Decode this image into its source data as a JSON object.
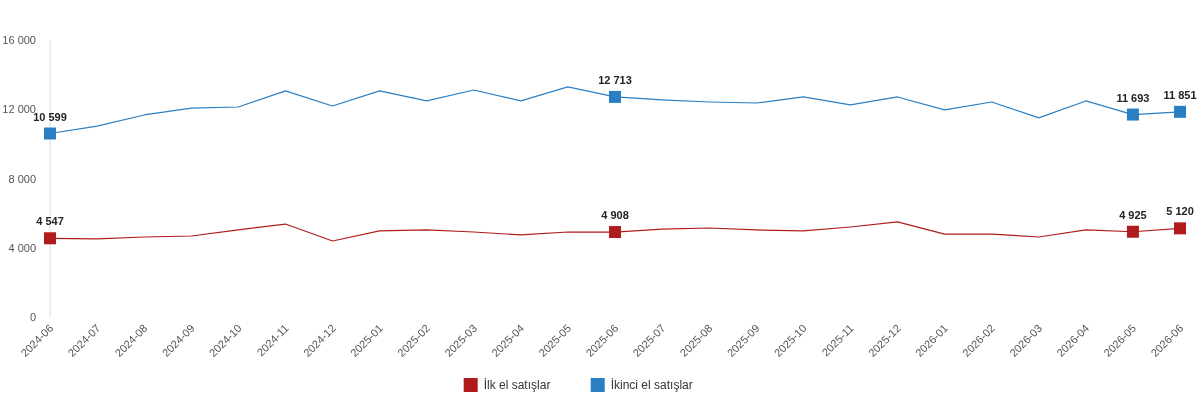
{
  "chart_data": {
    "type": "line",
    "categories": [
      "2024-06",
      "2024-07",
      "2024-08",
      "2024-09",
      "2024-10",
      "2024-11",
      "2024-12",
      "2025-01",
      "2025-02",
      "2025-03",
      "2025-04",
      "2025-05",
      "2025-06",
      "2025-07",
      "2025-08",
      "2025-09",
      "2025-10",
      "2025-11",
      "2025-12",
      "2026-01",
      "2026-02",
      "2026-03",
      "2026-04",
      "2026-05",
      "2026-06"
    ],
    "ylim": [
      0,
      16000
    ],
    "yticks": [
      0,
      {
        "value": 4000,
        "label": "4 000"
      },
      {
        "value": 8000,
        "label": "8 000"
      },
      {
        "value": 12000,
        "label": "12 000"
      },
      {
        "value": 16000,
        "label": "16 000"
      }
    ],
    "grid": false,
    "legend": "bottom",
    "line_style": "solid",
    "series": [
      {
        "name": "İlk el satışlar",
        "color": "#b01c1c",
        "values": [
          4547,
          4510,
          4620,
          4680,
          5030,
          5370,
          4390,
          4970,
          5030,
          4910,
          4740,
          4910,
          4908,
          5080,
          5140,
          5030,
          4970,
          5200,
          5490,
          4790,
          4790,
          4620,
          5030,
          4925,
          5120
        ],
        "value_labels": [
          "4 547",
          null,
          null,
          null,
          null,
          null,
          null,
          null,
          null,
          null,
          null,
          null,
          "4 908",
          null,
          null,
          null,
          null,
          null,
          null,
          null,
          null,
          null,
          null,
          "4 925",
          "5 120"
        ]
      },
      {
        "name": "İkinci el satışlar",
        "color": "#2a7fc4",
        "values": [
          10599,
          11030,
          11670,
          12070,
          12130,
          13060,
          12190,
          13060,
          12480,
          13110,
          12480,
          13290,
          12713,
          12540,
          12420,
          12360,
          12710,
          12250,
          12710,
          11960,
          12420,
          11500,
          12480,
          11693,
          11851
        ],
        "value_labels": [
          "10 599",
          null,
          null,
          null,
          null,
          null,
          null,
          null,
          null,
          null,
          null,
          null,
          "12 713",
          null,
          null,
          null,
          null,
          null,
          null,
          null,
          null,
          null,
          null,
          "11 693",
          "11 851"
        ]
      }
    ]
  }
}
